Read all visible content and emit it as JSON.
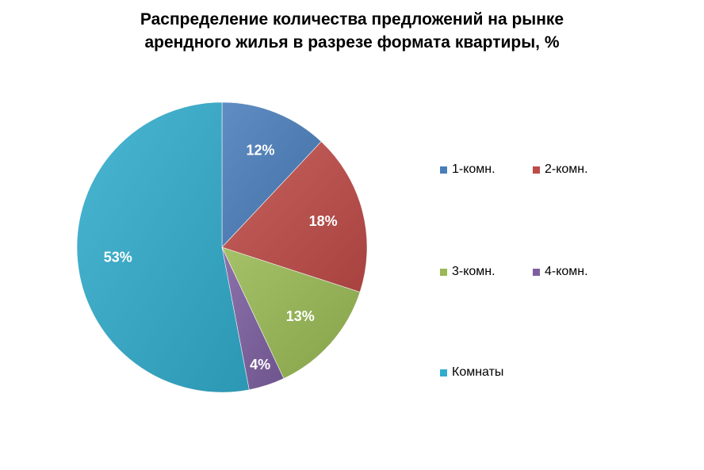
{
  "chart_data": {
    "type": "pie",
    "title_lines": [
      "Распределение количества предложений на рынке",
      "арендного жилья в разрезе формата квартиры, %"
    ],
    "slices": [
      {
        "label": "1-комн.",
        "value": 12,
        "display": "12%",
        "color": "#4A7EBB"
      },
      {
        "label": "2-комн.",
        "value": 18,
        "display": "18%",
        "color": "#BE4B48"
      },
      {
        "label": "3-комн.",
        "value": 13,
        "display": "13%",
        "color": "#98B954"
      },
      {
        "label": "4-комн.",
        "value": 4,
        "display": "4%",
        "color": "#7D5FA0"
      },
      {
        "label": "Комнаты",
        "value": 53,
        "display": "53%",
        "color": "#31ACCC"
      }
    ],
    "legend_position": "right"
  }
}
